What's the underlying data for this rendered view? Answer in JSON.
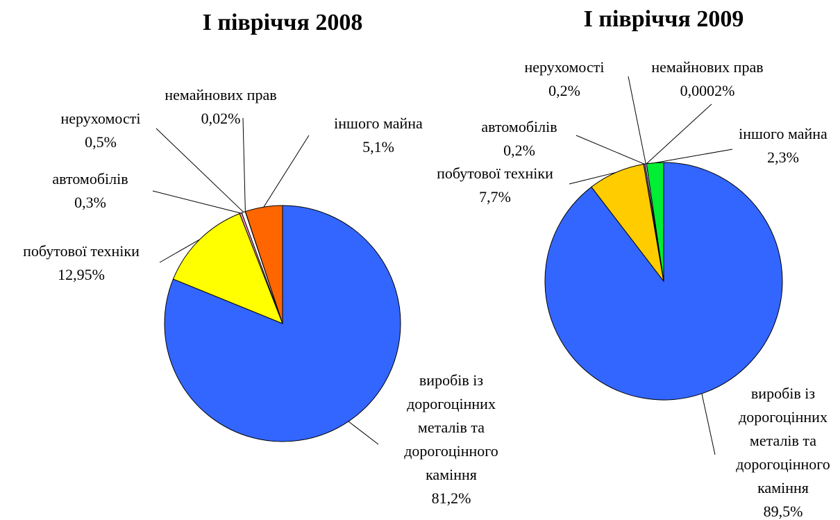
{
  "chart_data": [
    {
      "type": "pie",
      "title": "І півріччя 2008",
      "categories": [
        "виробів із дорогоцінних металів та дорогоцінного каміння",
        "побутової техніки",
        "автомобілів",
        "нерухомості",
        "немайнових прав",
        "іншого майна"
      ],
      "values": [
        81.2,
        12.95,
        0.3,
        0.5,
        0.02,
        5.1
      ],
      "value_labels": [
        "81,2%",
        "12,95%",
        "0,3%",
        "0,5%",
        "0,02%",
        "5,1%"
      ],
      "colors": [
        "#3366ff",
        "#ffff00",
        "#ff99cc",
        "#ffffff",
        "#ccffff",
        "#ff6600"
      ]
    },
    {
      "type": "pie",
      "title": "І півріччя 2009",
      "categories": [
        "виробів із дорогоцінних металів та дорогоцінного каміння",
        "побутової техніки",
        "автомобілів",
        "нерухомості",
        "немайнових прав",
        "іншого майна"
      ],
      "values": [
        89.5,
        7.7,
        0.2,
        0.2,
        0.0002,
        2.3
      ],
      "value_labels": [
        "89,5%",
        "7,7%",
        "0,2%",
        "0,2%",
        "0,0002%",
        "2,3%"
      ],
      "colors": [
        "#3366ff",
        "#ffcc00",
        "#9966cc",
        "#ffffff",
        "#ccffff",
        "#00ee33"
      ]
    }
  ]
}
